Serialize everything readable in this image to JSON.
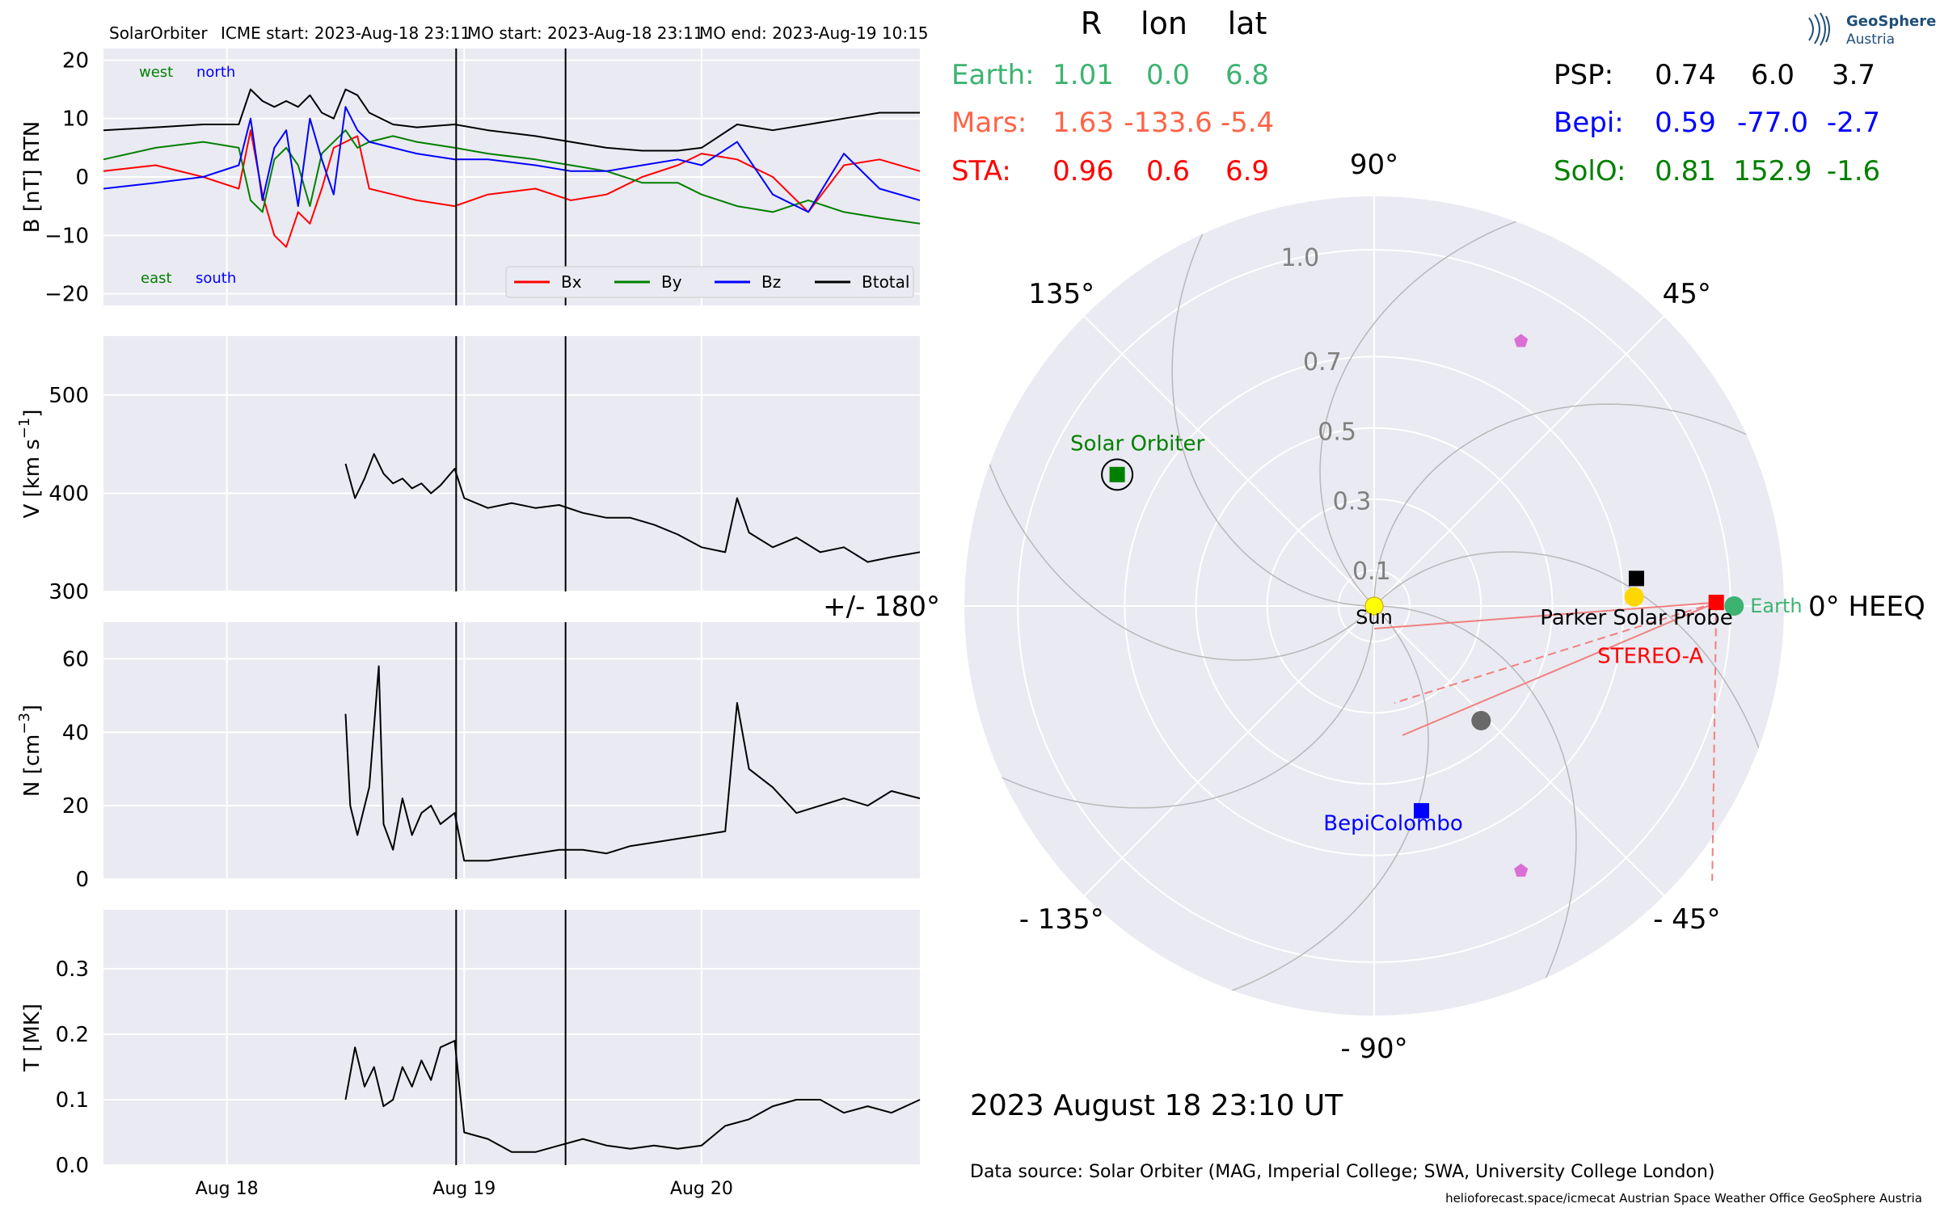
{
  "header": {
    "spacecraft": "SolarOrbiter",
    "icme_start": "ICME start: 2023-Aug-18 23:11",
    "mo_start": "MO start: 2023-Aug-18 23:11",
    "mo_end": "MO end: 2023-Aug-19 10:15"
  },
  "logo": {
    "line1": "GeoSphere",
    "line2": "Austria"
  },
  "positions_table": {
    "headers": [
      "R",
      "lon",
      "lat"
    ],
    "left_rows": [
      {
        "name": "Earth:",
        "R": "1.01",
        "lon": "0.0",
        "lat": "6.8",
        "color": "#3cb371"
      },
      {
        "name": "Mars:",
        "R": "1.63",
        "lon": "-133.6",
        "lat": "-5.4",
        "color": "#ff6347"
      },
      {
        "name": "STA:",
        "R": "0.96",
        "lon": "0.6",
        "lat": "6.9",
        "color": "#ff0000"
      }
    ],
    "right_rows": [
      {
        "name": "PSP:",
        "R": "0.74",
        "lon": "6.0",
        "lat": "3.7",
        "color": "#000000"
      },
      {
        "name": "Bepi:",
        "R": "0.59",
        "lon": "-77.0",
        "lat": "-2.7",
        "color": "#0000ff"
      },
      {
        "name": "SolO:",
        "R": "0.81",
        "lon": "152.9",
        "lat": "-1.6",
        "color": "#008000"
      }
    ]
  },
  "footer": {
    "datetime": "2023 August 18  23:10 UT",
    "source": "Data source: Solar Orbiter (MAG, Imperial College; SWA, University College London)",
    "credit": "helioforecast.space/icmecat   Austrian Space Weather Office   GeoSphere Austria"
  },
  "chart_data": [
    {
      "type": "line",
      "id": "magnetic_field",
      "ylabel": "B [nT] RTN",
      "ylim": [
        -22,
        22
      ],
      "yticks": [
        20,
        10,
        0,
        -10,
        -20
      ],
      "ytick_labels": [
        "20",
        "10",
        "0",
        "−10",
        "−20"
      ],
      "xlim": [
        -0.52,
        2.92
      ],
      "x_unit": "days since 2023-Aug-18 00:00",
      "annotations": {
        "west": "west",
        "north": "north",
        "east": "east",
        "south": "south"
      },
      "legend": [
        "Bx",
        "By",
        "Bz",
        "Btotal"
      ],
      "legend_position": "lower right",
      "series": [
        {
          "name": "Bx",
          "color": "#ff0000",
          "x": [
            -0.52,
            -0.3,
            -0.1,
            0.05,
            0.1,
            0.15,
            0.2,
            0.25,
            0.3,
            0.35,
            0.4,
            0.45,
            0.5,
            0.55,
            0.6,
            0.7,
            0.8,
            0.96,
            1.1,
            1.3,
            1.45,
            1.6,
            1.75,
            1.9,
            2.0,
            2.15,
            2.3,
            2.45,
            2.6,
            2.75,
            2.92
          ],
          "y": [
            1,
            2,
            0,
            -2,
            8,
            -3,
            -10,
            -12,
            -6,
            -8,
            -2,
            5,
            6,
            7,
            -2,
            -3,
            -4,
            -5,
            -3,
            -2,
            -4,
            -3,
            0,
            2,
            4,
            3,
            0,
            -6,
            2,
            3,
            1
          ]
        },
        {
          "name": "By",
          "color": "#008000",
          "x": [
            -0.52,
            -0.3,
            -0.1,
            0.05,
            0.1,
            0.15,
            0.2,
            0.25,
            0.3,
            0.35,
            0.4,
            0.45,
            0.5,
            0.55,
            0.6,
            0.7,
            0.8,
            0.96,
            1.1,
            1.3,
            1.45,
            1.6,
            1.75,
            1.9,
            2.0,
            2.15,
            2.3,
            2.45,
            2.6,
            2.75,
            2.92
          ],
          "y": [
            3,
            5,
            6,
            5,
            -4,
            -6,
            3,
            5,
            2,
            -5,
            4,
            6,
            8,
            5,
            6,
            7,
            6,
            5,
            4,
            3,
            2,
            1,
            -1,
            -1,
            -3,
            -5,
            -6,
            -4,
            -6,
            -7,
            -8
          ]
        },
        {
          "name": "Bz",
          "color": "#0000ff",
          "x": [
            -0.52,
            -0.3,
            -0.1,
            0.05,
            0.1,
            0.15,
            0.2,
            0.25,
            0.3,
            0.35,
            0.4,
            0.45,
            0.5,
            0.55,
            0.6,
            0.7,
            0.8,
            0.96,
            1.1,
            1.3,
            1.45,
            1.6,
            1.75,
            1.9,
            2.0,
            2.15,
            2.3,
            2.45,
            2.6,
            2.75,
            2.92
          ],
          "y": [
            -2,
            -1,
            0,
            2,
            10,
            -4,
            5,
            8,
            -5,
            10,
            3,
            -3,
            12,
            8,
            6,
            5,
            4,
            3,
            3,
            2,
            1,
            1,
            2,
            3,
            2,
            6,
            -3,
            -6,
            4,
            -2,
            -4
          ]
        },
        {
          "name": "Btotal",
          "color": "#000000",
          "x": [
            -0.52,
            -0.3,
            -0.1,
            0.05,
            0.1,
            0.15,
            0.2,
            0.25,
            0.3,
            0.35,
            0.4,
            0.45,
            0.5,
            0.55,
            0.6,
            0.7,
            0.8,
            0.96,
            1.1,
            1.3,
            1.45,
            1.6,
            1.75,
            1.9,
            2.0,
            2.15,
            2.3,
            2.45,
            2.6,
            2.75,
            2.92
          ],
          "y": [
            8,
            8.5,
            9,
            9,
            15,
            13,
            12,
            13,
            12,
            14,
            11,
            10,
            15,
            14,
            11,
            9,
            8.5,
            9,
            8,
            7,
            6,
            5,
            4.5,
            4.5,
            5,
            9,
            8,
            9,
            10,
            11,
            11
          ]
        }
      ]
    },
    {
      "type": "line",
      "id": "velocity",
      "ylabel": "V [km s^-1]",
      "ylim": [
        300,
        560
      ],
      "yticks": [
        500,
        400,
        300
      ],
      "ytick_labels": [
        "500",
        "400",
        "300"
      ],
      "xlim": [
        -0.52,
        2.92
      ],
      "series": [
        {
          "name": "V",
          "color": "#000000",
          "x": [
            0.5,
            0.54,
            0.58,
            0.62,
            0.66,
            0.7,
            0.74,
            0.78,
            0.82,
            0.86,
            0.9,
            0.96,
            1.0,
            1.1,
            1.2,
            1.3,
            1.4,
            1.5,
            1.6,
            1.7,
            1.8,
            1.9,
            2.0,
            2.1,
            2.15,
            2.2,
            2.3,
            2.4,
            2.5,
            2.6,
            2.7,
            2.8,
            2.92
          ],
          "y": [
            430,
            395,
            415,
            440,
            420,
            410,
            415,
            405,
            410,
            400,
            408,
            425,
            395,
            385,
            390,
            385,
            388,
            380,
            375,
            375,
            368,
            358,
            345,
            340,
            395,
            360,
            345,
            355,
            340,
            345,
            330,
            335,
            340
          ]
        }
      ]
    },
    {
      "type": "line",
      "id": "density",
      "ylabel": "N [cm^-3]",
      "ylim": [
        0,
        70
      ],
      "yticks": [
        60,
        40,
        20,
        0
      ],
      "ytick_labels": [
        "60",
        "40",
        "20",
        "0"
      ],
      "xlim": [
        -0.52,
        2.92
      ],
      "series": [
        {
          "name": "N",
          "color": "#000000",
          "x": [
            0.5,
            0.52,
            0.55,
            0.6,
            0.64,
            0.66,
            0.7,
            0.74,
            0.78,
            0.82,
            0.86,
            0.9,
            0.96,
            1.0,
            1.1,
            1.2,
            1.3,
            1.4,
            1.5,
            1.6,
            1.7,
            1.8,
            1.9,
            2.0,
            2.1,
            2.15,
            2.2,
            2.3,
            2.4,
            2.5,
            2.6,
            2.7,
            2.8,
            2.92
          ],
          "y": [
            45,
            20,
            12,
            25,
            58,
            15,
            8,
            22,
            12,
            18,
            20,
            15,
            18,
            5,
            5,
            6,
            7,
            8,
            8,
            7,
            9,
            10,
            11,
            12,
            13,
            48,
            30,
            25,
            18,
            20,
            22,
            20,
            24,
            22
          ]
        }
      ]
    },
    {
      "type": "line",
      "id": "temperature",
      "ylabel": "T [MK]",
      "ylim": [
        0,
        0.39
      ],
      "yticks": [
        0.3,
        0.2,
        0.1,
        0.0
      ],
      "ytick_labels": [
        "0.3",
        "0.2",
        "0.1",
        "0.0"
      ],
      "xlim": [
        -0.52,
        2.92
      ],
      "xticks": [
        0,
        1,
        2
      ],
      "xtick_labels": [
        "Aug 18",
        "Aug 19",
        "Aug 20"
      ],
      "series": [
        {
          "name": "T",
          "color": "#000000",
          "x": [
            0.5,
            0.54,
            0.58,
            0.62,
            0.66,
            0.7,
            0.74,
            0.78,
            0.82,
            0.86,
            0.9,
            0.96,
            1.0,
            1.1,
            1.2,
            1.3,
            1.4,
            1.5,
            1.6,
            1.7,
            1.8,
            1.9,
            2.0,
            2.1,
            2.2,
            2.3,
            2.4,
            2.5,
            2.6,
            2.7,
            2.8,
            2.92
          ],
          "y": [
            0.1,
            0.18,
            0.12,
            0.15,
            0.09,
            0.1,
            0.15,
            0.12,
            0.16,
            0.13,
            0.18,
            0.19,
            0.05,
            0.04,
            0.02,
            0.02,
            0.03,
            0.04,
            0.03,
            0.025,
            0.03,
            0.025,
            0.03,
            0.06,
            0.07,
            0.09,
            0.1,
            0.1,
            0.08,
            0.09,
            0.08,
            0.1
          ]
        }
      ]
    },
    {
      "type": "scatter",
      "id": "orbit_plot",
      "projection": "polar",
      "r_ticks": [
        0.1,
        0.3,
        0.5,
        0.7,
        1.0
      ],
      "r_tick_labels": [
        "0.1",
        "0.3",
        "0.5",
        "0.7",
        "1.0"
      ],
      "r_max": 1.15,
      "angle_labels": [
        {
          "deg": 0,
          "text": "0° HEEQ"
        },
        {
          "deg": 45,
          "text": "45°"
        },
        {
          "deg": 90,
          "text": "90°"
        },
        {
          "deg": 135,
          "text": "135°"
        },
        {
          "deg": 180,
          "text": "+/- 180°"
        },
        {
          "deg": -135,
          "text": "- 135°"
        },
        {
          "deg": -90,
          "text": "- 90°"
        },
        {
          "deg": -45,
          "text": "- 45°"
        }
      ],
      "objects": [
        {
          "name": "Sun",
          "label": "Sun",
          "r": 0.0,
          "lon": 0.0,
          "marker": "circle",
          "color": "#ffff00",
          "label_color": "#000000"
        },
        {
          "name": "Earth",
          "label": "Earth",
          "r": 1.01,
          "lon": 0.0,
          "marker": "circle",
          "color": "#3cb371",
          "label_color": "#3cb371"
        },
        {
          "name": "STEREO-A",
          "label": "STEREO-A",
          "r": 0.96,
          "lon": 0.6,
          "marker": "square",
          "color": "#ff0000",
          "label_color": "#ff0000"
        },
        {
          "name": "Parker Solar Probe",
          "label": "Parker Solar Probe",
          "r": 0.74,
          "lon": 6.0,
          "marker": "square",
          "color": "#000000",
          "label_color": "#000000"
        },
        {
          "name": "BepiColombo",
          "label": "BepiColombo",
          "r": 0.59,
          "lon": -77.0,
          "marker": "square",
          "color": "#0000ff",
          "label_color": "#0000ff"
        },
        {
          "name": "Solar Orbiter",
          "label": "Solar Orbiter",
          "r": 0.81,
          "lon": 152.9,
          "marker": "square",
          "color": "#008000",
          "label_color": "#008000"
        },
        {
          "name": "Venus",
          "label": "",
          "r": 0.73,
          "lon": 2.0,
          "marker": "circle",
          "color": "#ffd700"
        },
        {
          "name": "Mercury",
          "label": "",
          "r": 0.44,
          "lon": -47.0,
          "marker": "circle",
          "color": "#696969"
        },
        {
          "name": "pentagon-1",
          "label": "",
          "r": 0.85,
          "lon": 61.0,
          "marker": "pentagon",
          "color": "#da70d6"
        },
        {
          "name": "pentagon-2",
          "label": "",
          "r": 0.85,
          "lon": -61.0,
          "marker": "pentagon",
          "color": "#da70d6"
        }
      ]
    }
  ]
}
